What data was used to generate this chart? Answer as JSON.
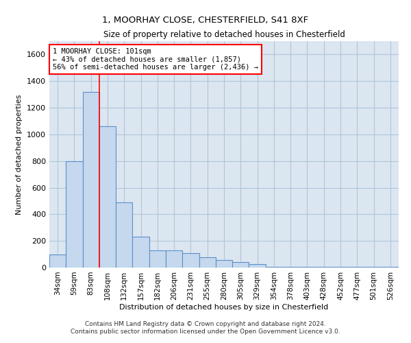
{
  "title_line1": "1, MOORHAY CLOSE, CHESTERFIELD, S41 8XF",
  "title_line2": "Size of property relative to detached houses in Chesterfield",
  "xlabel": "Distribution of detached houses by size in Chesterfield",
  "ylabel": "Number of detached properties",
  "bar_color": "#c5d8ed",
  "bar_edge_color": "#5b8fc9",
  "bg_color": "#dce6f1",
  "grid_color": "#b0c4d8",
  "categories": [
    "34sqm",
    "59sqm",
    "83sqm",
    "108sqm",
    "132sqm",
    "157sqm",
    "182sqm",
    "206sqm",
    "231sqm",
    "255sqm",
    "280sqm",
    "305sqm",
    "329sqm",
    "354sqm",
    "378sqm",
    "403sqm",
    "428sqm",
    "452sqm",
    "477sqm",
    "501sqm",
    "526sqm"
  ],
  "values": [
    100,
    800,
    1320,
    1060,
    490,
    230,
    130,
    130,
    110,
    75,
    55,
    40,
    25,
    5,
    5,
    5,
    5,
    5,
    5,
    5,
    5
  ],
  "ylim": [
    0,
    1700
  ],
  "yticks": [
    0,
    200,
    400,
    600,
    800,
    1000,
    1200,
    1400,
    1600
  ],
  "property_line_x": 2.5,
  "annotation_text": "1 MOORHAY CLOSE: 101sqm\n← 43% of detached houses are smaller (1,857)\n56% of semi-detached houses are larger (2,436) →",
  "footer_line1": "Contains HM Land Registry data © Crown copyright and database right 2024.",
  "footer_line2": "Contains public sector information licensed under the Open Government Licence v3.0."
}
